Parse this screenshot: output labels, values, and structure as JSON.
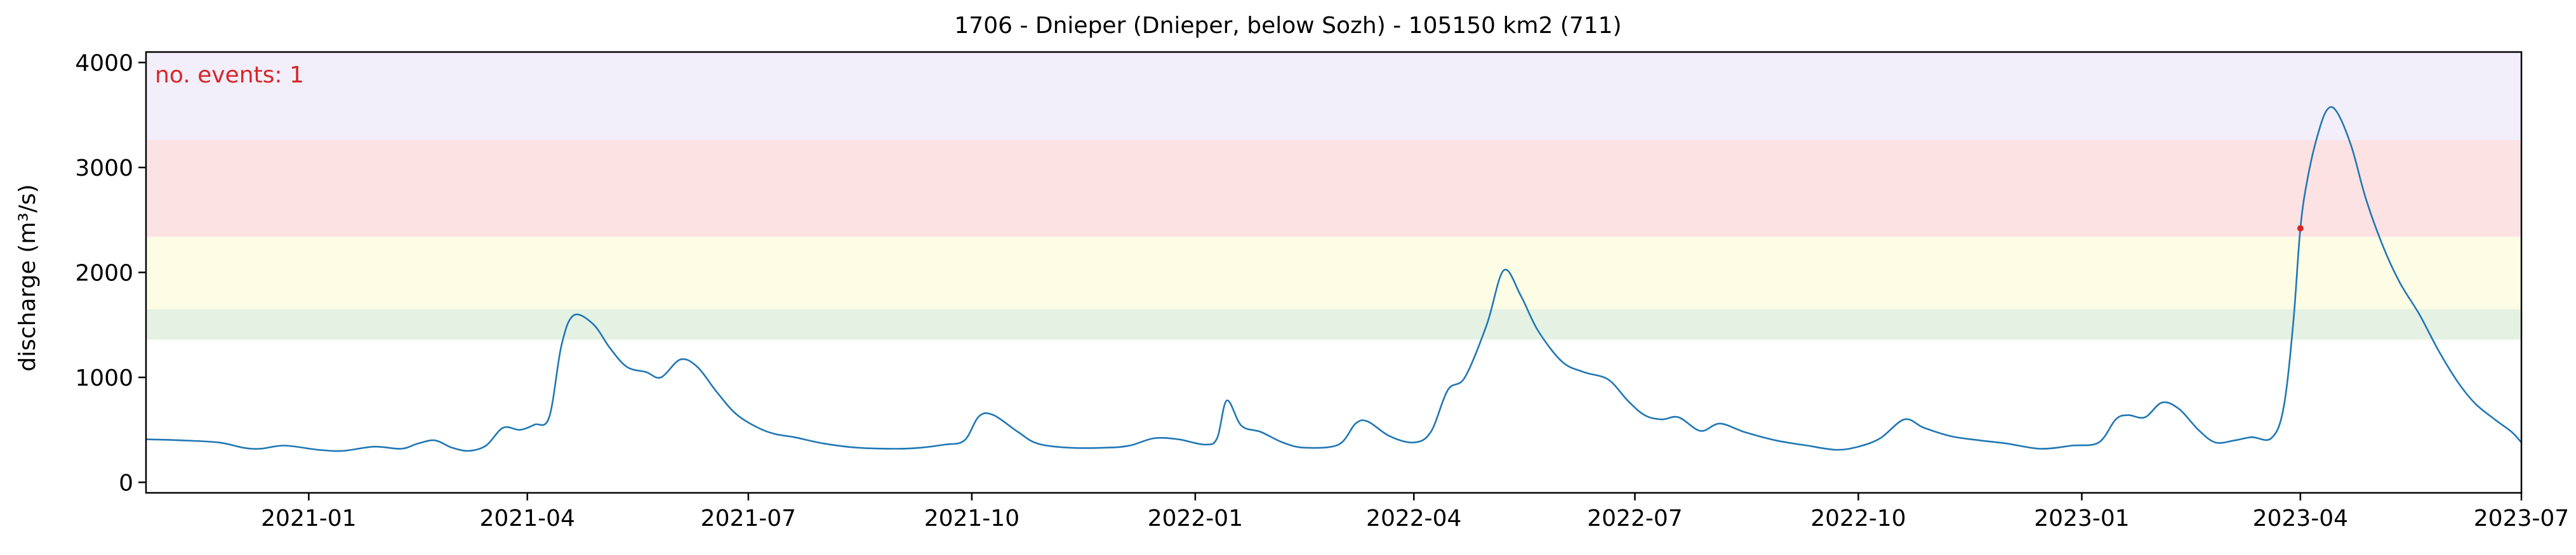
{
  "chart_data": {
    "type": "line",
    "title": "1706 - Dnieper (Dnieper, below Sozh) - 105150 km2 (711)",
    "xlabel": "",
    "ylabel": "discharge (m³/s)",
    "annotation": "no. events: 1",
    "xlim": [
      "2020-10-26",
      "2023-07-01"
    ],
    "ylim": [
      -100,
      4100
    ],
    "x_ticks": [
      "2021-01",
      "2021-04",
      "2021-07",
      "2021-10",
      "2022-01",
      "2022-04",
      "2022-07",
      "2022-10",
      "2023-01",
      "2023-04",
      "2023-07"
    ],
    "y_ticks": [
      0,
      1000,
      2000,
      3000,
      4000
    ],
    "grid": false,
    "threshold_bands": [
      {
        "from": 1360,
        "to": 1650,
        "color": "#e4f1e3"
      },
      {
        "from": 1650,
        "to": 2340,
        "color": "#fdfde6"
      },
      {
        "from": 2340,
        "to": 3260,
        "color": "#fde2e4"
      },
      {
        "from": 3260,
        "to": 4100,
        "color": "#f2eefa"
      }
    ],
    "colors": {
      "line": "#1f77b4",
      "event_marker": "#d62728",
      "annotation": "#d62728",
      "axes": "#000000"
    },
    "series": [
      {
        "points": [
          [
            "2020-10-26",
            410
          ],
          [
            "2020-11-10",
            400
          ],
          [
            "2020-11-25",
            380
          ],
          [
            "2020-12-05",
            330
          ],
          [
            "2020-12-12",
            320
          ],
          [
            "2020-12-22",
            350
          ],
          [
            "2021-01-05",
            310
          ],
          [
            "2021-01-15",
            300
          ],
          [
            "2021-01-28",
            340
          ],
          [
            "2021-02-08",
            320
          ],
          [
            "2021-02-15",
            370
          ],
          [
            "2021-02-22",
            400
          ],
          [
            "2021-03-01",
            330
          ],
          [
            "2021-03-08",
            300
          ],
          [
            "2021-03-15",
            350
          ],
          [
            "2021-03-22",
            520
          ],
          [
            "2021-03-29",
            500
          ],
          [
            "2021-04-04",
            550
          ],
          [
            "2021-04-10",
            620
          ],
          [
            "2021-04-15",
            1300
          ],
          [
            "2021-04-20",
            1590
          ],
          [
            "2021-04-28",
            1510
          ],
          [
            "2021-05-05",
            1280
          ],
          [
            "2021-05-12",
            1100
          ],
          [
            "2021-05-20",
            1050
          ],
          [
            "2021-05-26",
            1000
          ],
          [
            "2021-06-03",
            1170
          ],
          [
            "2021-06-10",
            1100
          ],
          [
            "2021-06-18",
            860
          ],
          [
            "2021-06-26",
            650
          ],
          [
            "2021-07-05",
            520
          ],
          [
            "2021-07-12",
            460
          ],
          [
            "2021-07-20",
            430
          ],
          [
            "2021-08-01",
            370
          ],
          [
            "2021-08-15",
            330
          ],
          [
            "2021-09-01",
            320
          ],
          [
            "2021-09-10",
            330
          ],
          [
            "2021-09-20",
            360
          ],
          [
            "2021-09-28",
            400
          ],
          [
            "2021-10-04",
            630
          ],
          [
            "2021-10-10",
            640
          ],
          [
            "2021-10-20",
            480
          ],
          [
            "2021-10-28",
            370
          ],
          [
            "2021-11-10",
            330
          ],
          [
            "2021-11-25",
            330
          ],
          [
            "2021-12-05",
            350
          ],
          [
            "2021-12-15",
            420
          ],
          [
            "2021-12-25",
            410
          ],
          [
            "2022-01-05",
            360
          ],
          [
            "2022-01-10",
            420
          ],
          [
            "2022-01-14",
            780
          ],
          [
            "2022-01-20",
            540
          ],
          [
            "2022-01-28",
            480
          ],
          [
            "2022-02-06",
            380
          ],
          [
            "2022-02-15",
            330
          ],
          [
            "2022-03-01",
            360
          ],
          [
            "2022-03-08",
            560
          ],
          [
            "2022-03-13",
            580
          ],
          [
            "2022-03-22",
            440
          ],
          [
            "2022-04-01",
            380
          ],
          [
            "2022-04-08",
            480
          ],
          [
            "2022-04-15",
            880
          ],
          [
            "2022-04-22",
            1000
          ],
          [
            "2022-05-01",
            1500
          ],
          [
            "2022-05-08",
            2020
          ],
          [
            "2022-05-15",
            1780
          ],
          [
            "2022-05-22",
            1450
          ],
          [
            "2022-06-01",
            1150
          ],
          [
            "2022-06-10",
            1050
          ],
          [
            "2022-06-20",
            980
          ],
          [
            "2022-06-28",
            780
          ],
          [
            "2022-07-05",
            640
          ],
          [
            "2022-07-12",
            600
          ],
          [
            "2022-07-19",
            620
          ],
          [
            "2022-07-28",
            490
          ],
          [
            "2022-08-05",
            560
          ],
          [
            "2022-08-15",
            480
          ],
          [
            "2022-08-28",
            400
          ],
          [
            "2022-09-10",
            350
          ],
          [
            "2022-09-22",
            310
          ],
          [
            "2022-10-01",
            340
          ],
          [
            "2022-10-10",
            420
          ],
          [
            "2022-10-20",
            600
          ],
          [
            "2022-10-28",
            520
          ],
          [
            "2022-11-08",
            440
          ],
          [
            "2022-11-20",
            400
          ],
          [
            "2022-12-01",
            370
          ],
          [
            "2022-12-15",
            320
          ],
          [
            "2022-12-28",
            350
          ],
          [
            "2023-01-08",
            380
          ],
          [
            "2023-01-15",
            600
          ],
          [
            "2023-01-20",
            640
          ],
          [
            "2023-01-27",
            620
          ],
          [
            "2023-02-03",
            760
          ],
          [
            "2023-02-10",
            700
          ],
          [
            "2023-02-18",
            500
          ],
          [
            "2023-02-25",
            380
          ],
          [
            "2023-03-05",
            400
          ],
          [
            "2023-03-12",
            430
          ],
          [
            "2023-03-20",
            420
          ],
          [
            "2023-03-25",
            700
          ],
          [
            "2023-03-29",
            1500
          ],
          [
            "2023-04-01",
            2420
          ],
          [
            "2023-04-04",
            2900
          ],
          [
            "2023-04-08",
            3300
          ],
          [
            "2023-04-12",
            3550
          ],
          [
            "2023-04-16",
            3530
          ],
          [
            "2023-04-22",
            3200
          ],
          [
            "2023-04-28",
            2700
          ],
          [
            "2023-05-05",
            2250
          ],
          [
            "2023-05-12",
            1900
          ],
          [
            "2023-05-20",
            1600
          ],
          [
            "2023-05-28",
            1250
          ],
          [
            "2023-06-05",
            950
          ],
          [
            "2023-06-12",
            750
          ],
          [
            "2023-06-20",
            600
          ],
          [
            "2023-06-27",
            480
          ],
          [
            "2023-07-01",
            380
          ]
        ]
      }
    ],
    "events": [
      {
        "x": "2023-04-01",
        "y": 2420
      }
    ]
  }
}
